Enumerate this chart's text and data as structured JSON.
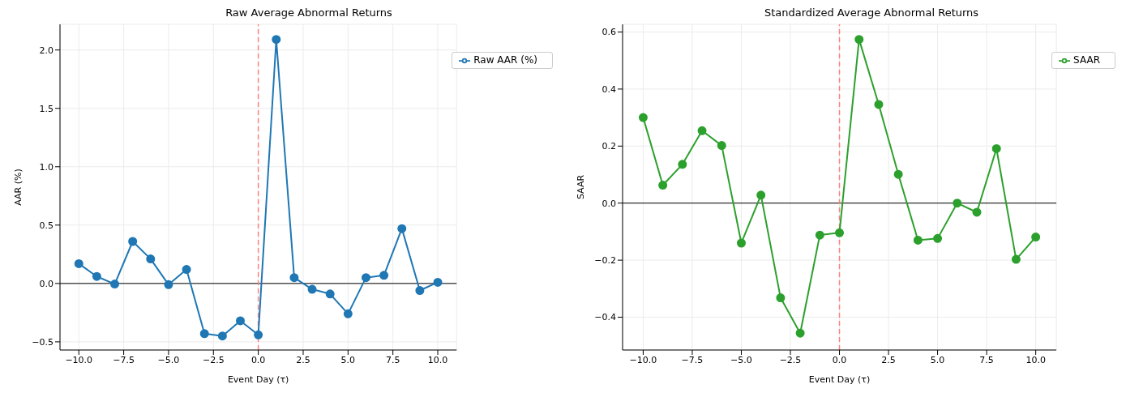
{
  "chart_data": [
    {
      "type": "line",
      "title": "Raw Average Abnormal Returns",
      "xlabel": "Event Day (τ)",
      "ylabel": "AAR (%)",
      "x": [
        -10,
        -9,
        -8,
        -7,
        -6,
        -5,
        -4,
        -3,
        -2,
        -1,
        0,
        1,
        2,
        3,
        4,
        5,
        6,
        7,
        8,
        9,
        10
      ],
      "series": [
        {
          "name": "Raw AAR (%)",
          "color": "#1f77b4",
          "values": [
            0.17,
            0.06,
            -0.005,
            0.36,
            0.21,
            -0.01,
            0.12,
            -0.43,
            -0.45,
            -0.32,
            -0.44,
            2.09,
            0.05,
            -0.05,
            -0.09,
            -0.26,
            0.05,
            0.07,
            0.47,
            -0.06,
            0.01
          ]
        }
      ],
      "xlim": [
        -11.05,
        11.05
      ],
      "ylim": [
        -0.57,
        2.22
      ],
      "xticks": [
        {
          "value": -10,
          "label": "−10.0"
        },
        {
          "value": -7.5,
          "label": "−7.5"
        },
        {
          "value": -5,
          "label": "−5.0"
        },
        {
          "value": -2.5,
          "label": "−2.5"
        },
        {
          "value": 0,
          "label": "0.0"
        },
        {
          "value": 2.5,
          "label": "2.5"
        },
        {
          "value": 5,
          "label": "5.0"
        },
        {
          "value": 7.5,
          "label": "7.5"
        },
        {
          "value": 10,
          "label": "10.0"
        }
      ],
      "yticks": [
        {
          "value": -0.5,
          "label": "−0.5"
        },
        {
          "value": 0,
          "label": "0.0"
        },
        {
          "value": 0.5,
          "label": "0.5"
        },
        {
          "value": 1,
          "label": "1.0"
        },
        {
          "value": 1.5,
          "label": "1.5"
        },
        {
          "value": 2,
          "label": "2.0"
        }
      ],
      "ref_lines": [
        {
          "axis": "y",
          "value": 0,
          "color": "#000000",
          "line_style": "solid"
        },
        {
          "axis": "x",
          "value": 0,
          "color": "#ff7f7f",
          "line_style": "dashed"
        }
      ],
      "grid": true,
      "legend": "top right",
      "marker": "circle",
      "line_style": "solid"
    },
    {
      "type": "line",
      "title": "Standardized Average Abnormal Returns",
      "xlabel": "Event Day (τ)",
      "ylabel": "SAAR",
      "x": [
        -10,
        -9,
        -8,
        -7,
        -6,
        -5,
        -4,
        -3,
        -2,
        -1,
        0,
        1,
        2,
        3,
        4,
        5,
        6,
        7,
        8,
        9,
        10
      ],
      "series": [
        {
          "name": "SAAR",
          "color": "#2ca02c",
          "values": [
            0.3,
            0.063,
            0.136,
            0.254,
            0.202,
            -0.14,
            0.028,
            -0.332,
            -0.456,
            -0.112,
            -0.104,
            0.574,
            0.346,
            0.101,
            -0.13,
            -0.124,
            0.0,
            -0.032,
            0.191,
            -0.197,
            -0.119
          ]
        }
      ],
      "xlim": [
        -11.05,
        11.05
      ],
      "ylim": [
        -0.515,
        0.627
      ],
      "xticks": [
        {
          "value": -10,
          "label": "−10.0"
        },
        {
          "value": -7.5,
          "label": "−7.5"
        },
        {
          "value": -5,
          "label": "−5.0"
        },
        {
          "value": -2.5,
          "label": "−2.5"
        },
        {
          "value": 0,
          "label": "0.0"
        },
        {
          "value": 2.5,
          "label": "2.5"
        },
        {
          "value": 5,
          "label": "5.0"
        },
        {
          "value": 7.5,
          "label": "7.5"
        },
        {
          "value": 10,
          "label": "10.0"
        }
      ],
      "yticks": [
        {
          "value": -0.4,
          "label": "−0.4"
        },
        {
          "value": -0.2,
          "label": "−0.2"
        },
        {
          "value": 0,
          "label": "0.0"
        },
        {
          "value": 0.2,
          "label": "0.2"
        },
        {
          "value": 0.4,
          "label": "0.4"
        },
        {
          "value": 0.6,
          "label": "0.6"
        }
      ],
      "ref_lines": [
        {
          "axis": "y",
          "value": 0,
          "color": "#000000",
          "line_style": "solid"
        },
        {
          "axis": "x",
          "value": 0,
          "color": "#ff7f7f",
          "line_style": "dashed"
        }
      ],
      "grid": true,
      "legend": "top right",
      "marker": "circle",
      "line_style": "solid"
    }
  ]
}
